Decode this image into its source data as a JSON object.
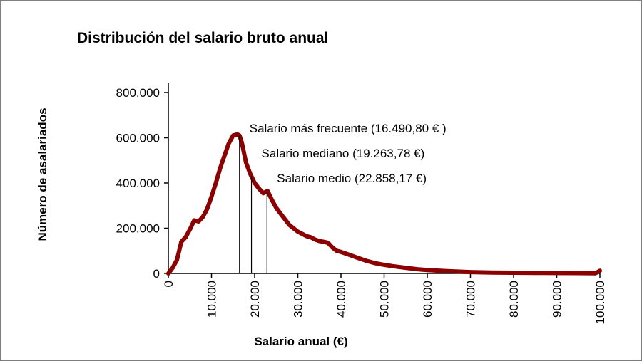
{
  "chart_data": {
    "type": "line",
    "title": "Distribución del salario bruto anual",
    "xlabel": "Salario anual (€)",
    "ylabel": "Número de asalariados",
    "xlim": [
      0,
      100000
    ],
    "ylim": [
      0,
      800000
    ],
    "x_ticks": [
      0,
      10000,
      20000,
      30000,
      40000,
      50000,
      60000,
      70000,
      80000,
      90000,
      100000
    ],
    "x_tick_labels": [
      "0",
      "10.000",
      "20.000",
      "30.000",
      "40.000",
      "50.000",
      "60.000",
      "70.000",
      "80.000",
      "90.000",
      "100.000"
    ],
    "y_ticks": [
      0,
      200000,
      400000,
      600000,
      800000
    ],
    "y_tick_labels": [
      "0",
      "200.000",
      "400.000",
      "600.000",
      "800.000"
    ],
    "grid": false,
    "legend": "none",
    "series_color": "#8b0000",
    "series": [
      {
        "x": [
          0,
          1000,
          2000,
          3000,
          4000,
          5000,
          6000,
          7000,
          8000,
          9000,
          10000,
          11000,
          12000,
          13000,
          14000,
          15000,
          16000,
          16500,
          17000,
          18000,
          19000,
          20000,
          21000,
          22000,
          23000,
          24000,
          25000,
          26000,
          27000,
          28000,
          29000,
          30000,
          31000,
          32000,
          33000,
          34000,
          35000,
          36000,
          37000,
          38000,
          39000,
          40000,
          42000,
          44000,
          46000,
          48000,
          50000,
          52000,
          55000,
          58000,
          60000,
          63000,
          66000,
          70000,
          75000,
          80000,
          85000,
          90000,
          95000,
          99000,
          100000
        ],
        "y": [
          0,
          25000,
          60000,
          140000,
          160000,
          195000,
          235000,
          230000,
          250000,
          285000,
          340000,
          400000,
          465000,
          520000,
          575000,
          610000,
          615000,
          610000,
          580000,
          490000,
          440000,
          400000,
          375000,
          355000,
          365000,
          325000,
          290000,
          265000,
          240000,
          215000,
          200000,
          185000,
          175000,
          165000,
          160000,
          150000,
          143000,
          140000,
          135000,
          115000,
          100000,
          95000,
          82000,
          68000,
          55000,
          45000,
          38000,
          32000,
          25000,
          18000,
          15000,
          12000,
          9000,
          6000,
          4000,
          3000,
          2500,
          2000,
          1500,
          1000,
          12000
        ]
      }
    ],
    "annotations": [
      {
        "label": "Salario más frecuente (16.490,80 € )",
        "x": 16490.8
      },
      {
        "label": "Salario mediano (19.263,78 €)",
        "x": 19263.78
      },
      {
        "label": "Salario medio (22.858,17 €)",
        "x": 22858.17
      }
    ]
  }
}
